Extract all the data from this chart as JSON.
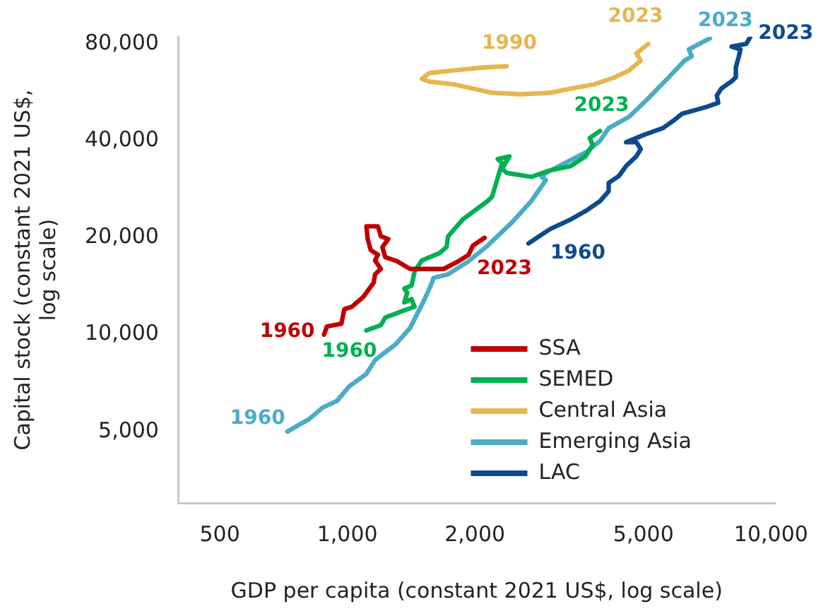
{
  "chart_data": {
    "type": "line",
    "xlabel": "GDP per capita (constant 2021 US$, log scale)",
    "ylabel": "Capital stock (constant 2021 US$, log scale)",
    "log": "xy",
    "grid": false,
    "legend": "bottom right",
    "marker": "none",
    "line_style": "solid",
    "xlim": [
      400,
      10200
    ],
    "ylim": [
      3000,
      84200
    ],
    "xticks": [
      500,
      {
        "value": 1000,
        "label": "1,000"
      },
      {
        "value": 2000,
        "label": "2,000"
      },
      {
        "value": 5000,
        "label": "5,000"
      },
      {
        "value": 10000,
        "label": "10,000"
      }
    ],
    "yticks": [
      {
        "value": 5000,
        "label": "5,000"
      },
      {
        "value": 10000,
        "label": "10,000"
      },
      {
        "value": 20000,
        "label": "20,000"
      },
      {
        "value": 40000,
        "label": "40,000"
      },
      {
        "value": 80000,
        "label": "80,000"
      }
    ],
    "series": [
      {
        "name": "SSA",
        "color": "#c00000",
        "x": [
          881,
          895,
          968,
          984,
          1024,
          1091,
          1154,
          1163,
          1200,
          1163,
          1181,
          1136,
          1117,
          1109,
          1181,
          1200,
          1249,
          1210,
          1229,
          1310,
          1407,
          1689,
          1829,
          1933,
          1979,
          2109
        ],
        "values": [
          10000,
          10600,
          10800,
          12000,
          12200,
          13100,
          14500,
          15400,
          16000,
          17000,
          17700,
          18300,
          19800,
          21700,
          21700,
          20200,
          19800,
          18700,
          17400,
          16900,
          16000,
          16000,
          16900,
          17700,
          18900,
          20000
        ]
      },
      {
        "name": "SEMED",
        "color": "#00b050",
        "x": [
          1109,
          1200,
          1229,
          1363,
          1441,
          1418,
          1363,
          1385,
          1363,
          1418,
          1441,
          1499,
          1648,
          1715,
          1729,
          1873,
          2143,
          2195,
          2320,
          2265,
          2414,
          2320,
          2376,
          2718,
          3013,
          3368,
          3649,
          3795,
          3733,
          3950
        ],
        "values": [
          10300,
          10700,
          11300,
          11900,
          12200,
          12900,
          12600,
          13500,
          13900,
          14200,
          15700,
          17000,
          17900,
          18700,
          20200,
          22800,
          26000,
          26800,
          34100,
          35100,
          35800,
          32800,
          31800,
          30900,
          32400,
          33400,
          35800,
          38900,
          40800,
          42900
        ]
      },
      {
        "name": "Central Asia",
        "color": "#e6b74f",
        "x": [
          2376,
          2090,
          1784,
          1560,
          1499,
          1560,
          1784,
          1979,
          2195,
          2571,
          3013,
          3368,
          3830,
          4276,
          4627,
          4924,
          4810,
          5131
        ],
        "values": [
          68200,
          67600,
          66200,
          64900,
          62300,
          61100,
          59900,
          58100,
          56400,
          55800,
          56400,
          58100,
          59900,
          63000,
          66200,
          71000,
          74700,
          80000
        ]
      },
      {
        "name": "Emerging Asia",
        "color": "#4bacc6",
        "x": [
          722,
          813,
          874,
          946,
          1008,
          1109,
          1163,
          1299,
          1407,
          1523,
          1584,
          1597,
          1729,
          1933,
          2143,
          2453,
          2718,
          2942,
          2874,
          2942,
          3262,
          3675,
          3950,
          4138,
          4627,
          5131,
          5690,
          6252,
          6500,
          6400,
          7175
        ],
        "values": [
          5000,
          5470,
          5930,
          6230,
          6890,
          7550,
          8340,
          9320,
          10500,
          12900,
          14500,
          15000,
          15400,
          16900,
          18900,
          22400,
          26000,
          30200,
          30900,
          31800,
          34100,
          37000,
          40000,
          43800,
          47500,
          54200,
          62300,
          71000,
          73200,
          76900,
          83300
        ]
      },
      {
        "name": "LAC",
        "color": "#0b4a8f",
        "x": [
          2676,
          3013,
          3368,
          3649,
          3950,
          4138,
          4138,
          4375,
          4549,
          4810,
          4924,
          4810,
          4549,
          5010,
          5556,
          5874,
          6160,
          7050,
          7507,
          7449,
          7630,
          8070,
          8260,
          8260,
          8400,
          8470,
          8070,
          8740,
          8940
        ],
        "values": [
          19200,
          21300,
          22800,
          24200,
          26000,
          27900,
          29600,
          31100,
          33400,
          35800,
          37700,
          39600,
          39600,
          41700,
          43800,
          46100,
          48500,
          51000,
          52500,
          55300,
          58100,
          61200,
          63000,
          67600,
          73300,
          76900,
          78500,
          80000,
          84200
        ]
      }
    ],
    "annotations": [
      "1960",
      "2023",
      "1960",
      "2023",
      "1990",
      "2023",
      "1960",
      "2023",
      "1960",
      "2023"
    ]
  }
}
